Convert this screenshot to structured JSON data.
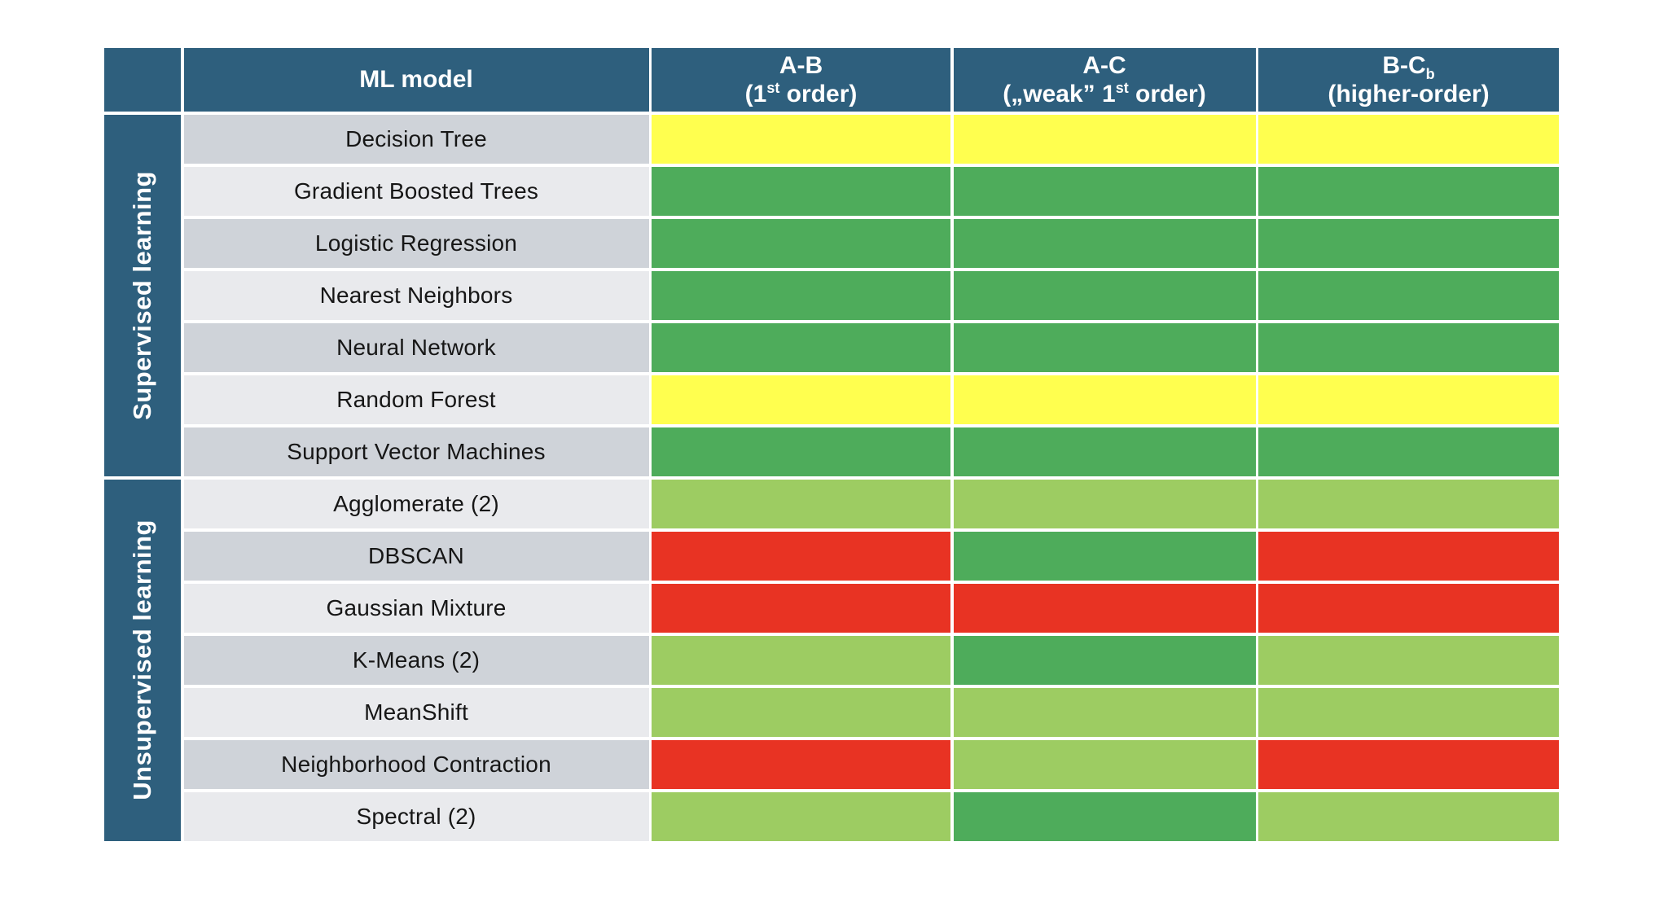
{
  "colors": {
    "header_blue": "#2E5F7D",
    "yellow": "#FFFF4F",
    "green": "#4EAC5B",
    "light_green": "#9DCC62",
    "red": "#E83323",
    "row_dark": "#CFD3D9",
    "row_light": "#E9EAED",
    "gap_white": "#FFFFFF",
    "header_text": "#FFFFFF",
    "row_text": "#161616"
  },
  "table": {
    "ml_model_header": "ML model",
    "columns": [
      {
        "id": "ab",
        "l1_pre": "A-B",
        "l1_sub": "",
        "l2_pre": "(1",
        "l2_sup": "st",
        "l2_post": " order)"
      },
      {
        "id": "ac",
        "l1_pre": "A-C",
        "l1_sub": "",
        "l2_pre": "(„weak” 1",
        "l2_sup": "st",
        "l2_post": " order)"
      },
      {
        "id": "bc",
        "l1_pre": "B-C",
        "l1_sub": "b",
        "l2_pre": "(higher-order)",
        "l2_sup": "",
        "l2_post": ""
      }
    ],
    "groups": [
      {
        "id": "supervised",
        "label": "Supervised learning",
        "row_count": 7
      },
      {
        "id": "unsupervised",
        "label": "Unsupervised learning",
        "row_count": 7
      }
    ],
    "rows": [
      {
        "label": "Decision Tree",
        "group": "supervised",
        "cells": [
          "yellow",
          "yellow",
          "yellow"
        ]
      },
      {
        "label": "Gradient Boosted Trees",
        "group": "supervised",
        "cells": [
          "green",
          "green",
          "green"
        ]
      },
      {
        "label": "Logistic Regression",
        "group": "supervised",
        "cells": [
          "green",
          "green",
          "green"
        ]
      },
      {
        "label": "Nearest Neighbors",
        "group": "supervised",
        "cells": [
          "green",
          "green",
          "green"
        ]
      },
      {
        "label": "Neural Network",
        "group": "supervised",
        "cells": [
          "green",
          "green",
          "green"
        ]
      },
      {
        "label": "Random Forest",
        "group": "supervised",
        "cells": [
          "yellow",
          "yellow",
          "yellow"
        ]
      },
      {
        "label": "Support Vector Machines",
        "group": "supervised",
        "cells": [
          "green",
          "green",
          "green"
        ]
      },
      {
        "label": "Agglomerate (2)",
        "group": "unsupervised",
        "cells": [
          "light_green",
          "light_green",
          "light_green"
        ]
      },
      {
        "label": "DBSCAN",
        "group": "unsupervised",
        "cells": [
          "red",
          "green",
          "red"
        ]
      },
      {
        "label": "Gaussian Mixture",
        "group": "unsupervised",
        "cells": [
          "red",
          "red",
          "red"
        ]
      },
      {
        "label": "K-Means (2)",
        "group": "unsupervised",
        "cells": [
          "light_green",
          "green",
          "light_green"
        ]
      },
      {
        "label": "MeanShift",
        "group": "unsupervised",
        "cells": [
          "light_green",
          "light_green",
          "light_green"
        ]
      },
      {
        "label": "Neighborhood Contraction",
        "group": "unsupervised",
        "cells": [
          "red",
          "light_green",
          "red"
        ]
      },
      {
        "label": "Spectral (2)",
        "group": "unsupervised",
        "cells": [
          "light_green",
          "green",
          "light_green"
        ]
      }
    ]
  },
  "chart_data": {
    "type": "table",
    "columns": [
      "ML model",
      "A-B (1st order)",
      "A-C („weak” 1st order)",
      "B-Cb (higher-order)"
    ],
    "row_groups": [
      "Supervised learning",
      "Unsupervised learning"
    ],
    "rows": [
      {
        "group": "Supervised learning",
        "model": "Decision Tree",
        "values": [
          "yellow",
          "yellow",
          "yellow"
        ]
      },
      {
        "group": "Supervised learning",
        "model": "Gradient Boosted Trees",
        "values": [
          "green",
          "green",
          "green"
        ]
      },
      {
        "group": "Supervised learning",
        "model": "Logistic Regression",
        "values": [
          "green",
          "green",
          "green"
        ]
      },
      {
        "group": "Supervised learning",
        "model": "Nearest Neighbors",
        "values": [
          "green",
          "green",
          "green"
        ]
      },
      {
        "group": "Supervised learning",
        "model": "Neural Network",
        "values": [
          "green",
          "green",
          "green"
        ]
      },
      {
        "group": "Supervised learning",
        "model": "Random Forest",
        "values": [
          "yellow",
          "yellow",
          "yellow"
        ]
      },
      {
        "group": "Supervised learning",
        "model": "Support Vector Machines",
        "values": [
          "green",
          "green",
          "green"
        ]
      },
      {
        "group": "Unsupervised learning",
        "model": "Agglomerate (2)",
        "values": [
          "light_green",
          "light_green",
          "light_green"
        ]
      },
      {
        "group": "Unsupervised learning",
        "model": "DBSCAN",
        "values": [
          "red",
          "green",
          "red"
        ]
      },
      {
        "group": "Unsupervised learning",
        "model": "Gaussian Mixture",
        "values": [
          "red",
          "red",
          "red"
        ]
      },
      {
        "group": "Unsupervised learning",
        "model": "K-Means (2)",
        "values": [
          "light_green",
          "green",
          "light_green"
        ]
      },
      {
        "group": "Unsupervised learning",
        "model": "MeanShift",
        "values": [
          "light_green",
          "light_green",
          "light_green"
        ]
      },
      {
        "group": "Unsupervised learning",
        "model": "Neighborhood Contraction",
        "values": [
          "red",
          "light_green",
          "red"
        ]
      },
      {
        "group": "Unsupervised learning",
        "model": "Spectral (2)",
        "values": [
          "light_green",
          "green",
          "light_green"
        ]
      }
    ],
    "color_palette": {
      "yellow": "#FFFF4F",
      "green": "#4EAC5B",
      "light_green": "#9DCC62",
      "red": "#E83323"
    },
    "legend": "none visible",
    "grid": "white separators between all cells"
  }
}
